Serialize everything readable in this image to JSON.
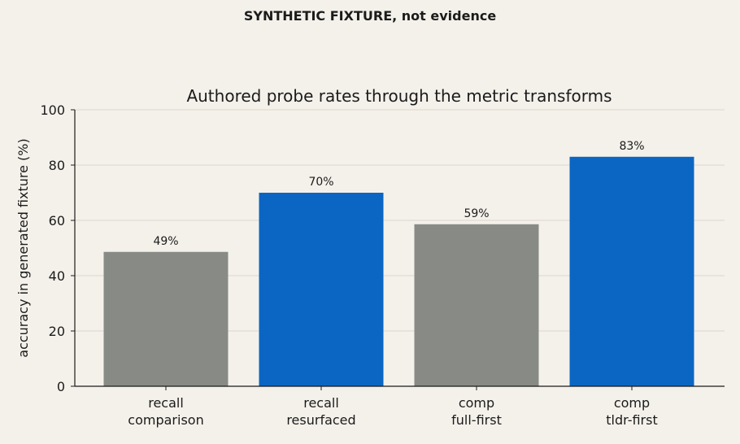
{
  "header": {
    "supertitle": "SYNTHETIC FIXTURE, not evidence"
  },
  "chart_data": {
    "type": "bar",
    "title": "Authored probe rates through the metric transforms",
    "xlabel": "",
    "ylabel": "accuracy in generated fixture (%)",
    "ylim": [
      0,
      100
    ],
    "yticks": [
      0,
      20,
      40,
      60,
      80,
      100
    ],
    "grid": "horizontal",
    "legend": "none",
    "categories": [
      [
        "recall",
        "comparison"
      ],
      [
        "recall",
        "resurfaced"
      ],
      [
        "comp",
        "full-first"
      ],
      [
        "comp",
        "tldr-first"
      ]
    ],
    "values": [
      48.6,
      70.0,
      58.6,
      83.0
    ],
    "data_labels": [
      "49%",
      "70%",
      "59%",
      "83%"
    ],
    "colors": [
      "#888b85",
      "#0b66c3",
      "#888b85",
      "#0b66c3"
    ],
    "axis_color": "#1b1b1b",
    "grid_color": "#dcd8cf"
  }
}
